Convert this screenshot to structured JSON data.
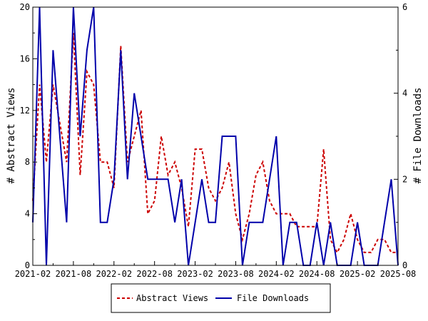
{
  "chart_data": {
    "type": "line",
    "ylabel_left": "# Abstract Views",
    "ylabel_right": "# File Downloads",
    "ylim_left": [
      0,
      20
    ],
    "ylim_right": [
      0,
      6
    ],
    "yticks_left": [
      "0",
      "4",
      "8",
      "12",
      "16",
      "20"
    ],
    "yticks_right": [
      "0",
      "2",
      "4",
      "6"
    ],
    "xticks": [
      "2021-02",
      "2021-08",
      "2022-02",
      "2022-08",
      "2023-02",
      "2023-08",
      "2024-02",
      "2024-08",
      "2025-02",
      "2025-08"
    ],
    "grid": false,
    "legend_position": "bottom",
    "colors": {
      "abstract_views": "#cc0000",
      "file_downloads": "#0000aa"
    },
    "series": [
      {
        "name": "Abstract Views",
        "axis": "left",
        "style": "dashed",
        "points": [
          [
            "2021-02",
            5
          ],
          [
            "2021-03",
            14
          ],
          [
            "2021-04",
            8
          ],
          [
            "2021-05",
            14
          ],
          [
            "2021-06",
            11
          ],
          [
            "2021-07",
            8
          ],
          [
            "2021-08",
            18
          ],
          [
            "2021-09",
            7
          ],
          [
            "2021-10",
            15
          ],
          [
            "2021-11",
            14
          ],
          [
            "2021-12",
            8
          ],
          [
            "2022-01",
            8
          ],
          [
            "2022-02",
            6
          ],
          [
            "2022-03",
            17
          ],
          [
            "2022-04",
            8
          ],
          [
            "2022-05",
            10
          ],
          [
            "2022-06",
            12
          ],
          [
            "2022-07",
            4
          ],
          [
            "2022-08",
            5
          ],
          [
            "2022-09",
            10
          ],
          [
            "2022-10",
            7
          ],
          [
            "2022-11",
            8
          ],
          [
            "2022-12",
            6
          ],
          [
            "2023-01",
            3
          ],
          [
            "2023-02",
            9
          ],
          [
            "2023-03",
            9
          ],
          [
            "2023-04",
            6
          ],
          [
            "2023-05",
            5
          ],
          [
            "2023-06",
            6
          ],
          [
            "2023-07",
            8
          ],
          [
            "2023-08",
            4
          ],
          [
            "2023-09",
            2
          ],
          [
            "2023-10",
            4
          ],
          [
            "2023-11",
            7
          ],
          [
            "2023-12",
            8
          ],
          [
            "2024-01",
            5
          ],
          [
            "2024-02",
            4
          ],
          [
            "2024-03",
            4
          ],
          [
            "2024-04",
            4
          ],
          [
            "2024-05",
            3
          ],
          [
            "2024-06",
            3
          ],
          [
            "2024-07",
            3
          ],
          [
            "2024-08",
            3
          ],
          [
            "2024-09",
            9
          ],
          [
            "2024-10",
            2
          ],
          [
            "2024-11",
            1
          ],
          [
            "2024-12",
            2
          ],
          [
            "2025-01",
            4
          ],
          [
            "2025-02",
            2
          ],
          [
            "2025-03",
            1
          ],
          [
            "2025-04",
            1
          ],
          [
            "2025-05",
            2
          ],
          [
            "2025-06",
            2
          ],
          [
            "2025-07",
            1
          ],
          [
            "2025-08",
            1
          ]
        ]
      },
      {
        "name": "File Downloads",
        "axis": "right",
        "style": "solid",
        "points": [
          [
            "2021-02",
            1
          ],
          [
            "2021-03",
            6
          ],
          [
            "2021-04",
            0
          ],
          [
            "2021-05",
            5
          ],
          [
            "2021-06",
            3
          ],
          [
            "2021-07",
            1
          ],
          [
            "2021-08",
            6
          ],
          [
            "2021-09",
            3
          ],
          [
            "2021-10",
            5
          ],
          [
            "2021-11",
            6
          ],
          [
            "2021-12",
            1
          ],
          [
            "2022-01",
            1
          ],
          [
            "2022-02",
            2
          ],
          [
            "2022-03",
            5
          ],
          [
            "2022-04",
            2
          ],
          [
            "2022-05",
            4
          ],
          [
            "2022-06",
            3
          ],
          [
            "2022-07",
            2
          ],
          [
            "2022-08",
            2
          ],
          [
            "2022-09",
            2
          ],
          [
            "2022-10",
            2
          ],
          [
            "2022-11",
            1
          ],
          [
            "2022-12",
            2
          ],
          [
            "2023-01",
            0
          ],
          [
            "2023-02",
            1
          ],
          [
            "2023-03",
            2
          ],
          [
            "2023-04",
            1
          ],
          [
            "2023-05",
            1
          ],
          [
            "2023-06",
            3
          ],
          [
            "2023-07",
            3
          ],
          [
            "2023-08",
            3
          ],
          [
            "2023-09",
            0
          ],
          [
            "2023-10",
            1
          ],
          [
            "2023-11",
            1
          ],
          [
            "2023-12",
            1
          ],
          [
            "2024-01",
            2
          ],
          [
            "2024-02",
            3
          ],
          [
            "2024-03",
            0
          ],
          [
            "2024-04",
            1
          ],
          [
            "2024-05",
            1
          ],
          [
            "2024-06",
            0
          ],
          [
            "2024-07",
            0
          ],
          [
            "2024-08",
            1
          ],
          [
            "2024-09",
            0
          ],
          [
            "2024-10",
            1
          ],
          [
            "2024-11",
            0
          ],
          [
            "2024-12",
            0
          ],
          [
            "2025-01",
            0
          ],
          [
            "2025-02",
            1
          ],
          [
            "2025-03",
            0
          ],
          [
            "2025-04",
            0
          ],
          [
            "2025-05",
            0
          ],
          [
            "2025-06",
            1
          ],
          [
            "2025-07",
            2
          ],
          [
            "2025-08",
            0
          ]
        ]
      }
    ]
  }
}
